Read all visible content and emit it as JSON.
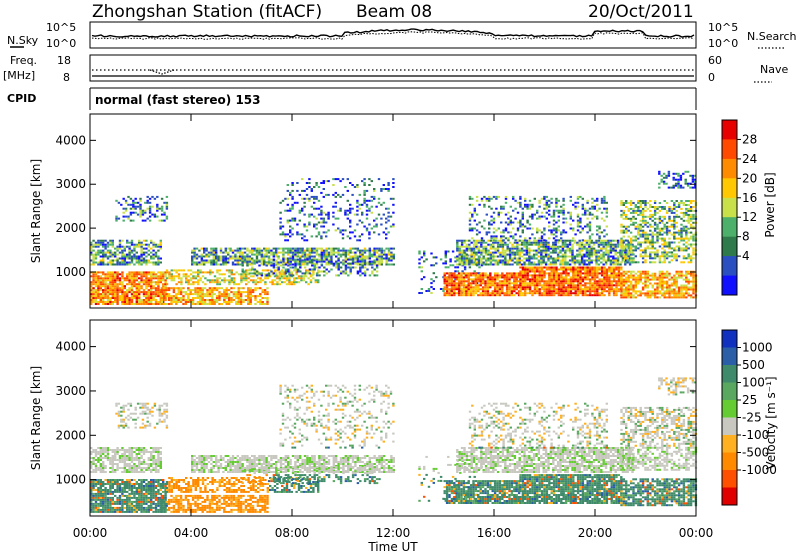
{
  "header": {
    "station": "Zhongshan Station (fitACF)",
    "beam": "Beam 08",
    "date": "20/Oct/2011"
  },
  "top_panels": {
    "noise": {
      "left_label": "N.Sky",
      "right_label": "N.Search",
      "ticks": [
        "10^5",
        "10^0"
      ]
    },
    "freq": {
      "left_label_1": "Freq.",
      "left_label_2": "[MHz]",
      "left_ticks": [
        "18",
        "8"
      ],
      "right_label": "Nave",
      "right_ticks": [
        "60",
        "0"
      ]
    },
    "cpid_label": "CPID",
    "cpid_text": "normal (fast stereo) 153"
  },
  "chart_data": [
    {
      "type": "heatmap",
      "title": "",
      "xlabel": "Time UT",
      "ylabel": "Slant Range [km]",
      "colorbar_label": "Power [dB]",
      "colorbar_ticks": [
        "28",
        "24",
        "20",
        "16",
        "12",
        "8",
        "4"
      ],
      "colorbar_colors": [
        "#e60000",
        "#ff4a00",
        "#ff8c00",
        "#ffc800",
        "#c8e04a",
        "#4caf6a",
        "#2f7a4a",
        "#2a4fc0",
        "#1010ff"
      ],
      "x_ticks": [
        "00:00",
        "04:00",
        "08:00",
        "12:00",
        "16:00",
        "20:00",
        "00:00"
      ],
      "y_ticks": [
        "1000",
        "2000",
        "3000",
        "4000"
      ],
      "ylim": [
        180,
        4600
      ],
      "xlim_hours": [
        0,
        24
      ]
    },
    {
      "type": "heatmap",
      "title": "",
      "xlabel": "Time UT",
      "ylabel": "Slant Range [km]",
      "colorbar_label": "Velocity [m s⁻¹]",
      "colorbar_ticks": [
        "1000",
        "500",
        "100",
        "25",
        "-25",
        "-100",
        "-500",
        "-1000"
      ],
      "colorbar_colors": [
        "#1030c0",
        "#2a5fa8",
        "#3f8a6a",
        "#5aa860",
        "#66cc33",
        "#c8c8c0",
        "#ffb020",
        "#ff8a00",
        "#ff5000",
        "#e00000"
      ],
      "x_ticks": [
        "00:00",
        "04:00",
        "08:00",
        "12:00",
        "16:00",
        "20:00",
        "00:00"
      ],
      "y_ticks": [
        "1000",
        "2000",
        "3000",
        "4000"
      ],
      "ylim": [
        180,
        4600
      ],
      "xlim_hours": [
        0,
        24
      ]
    }
  ]
}
